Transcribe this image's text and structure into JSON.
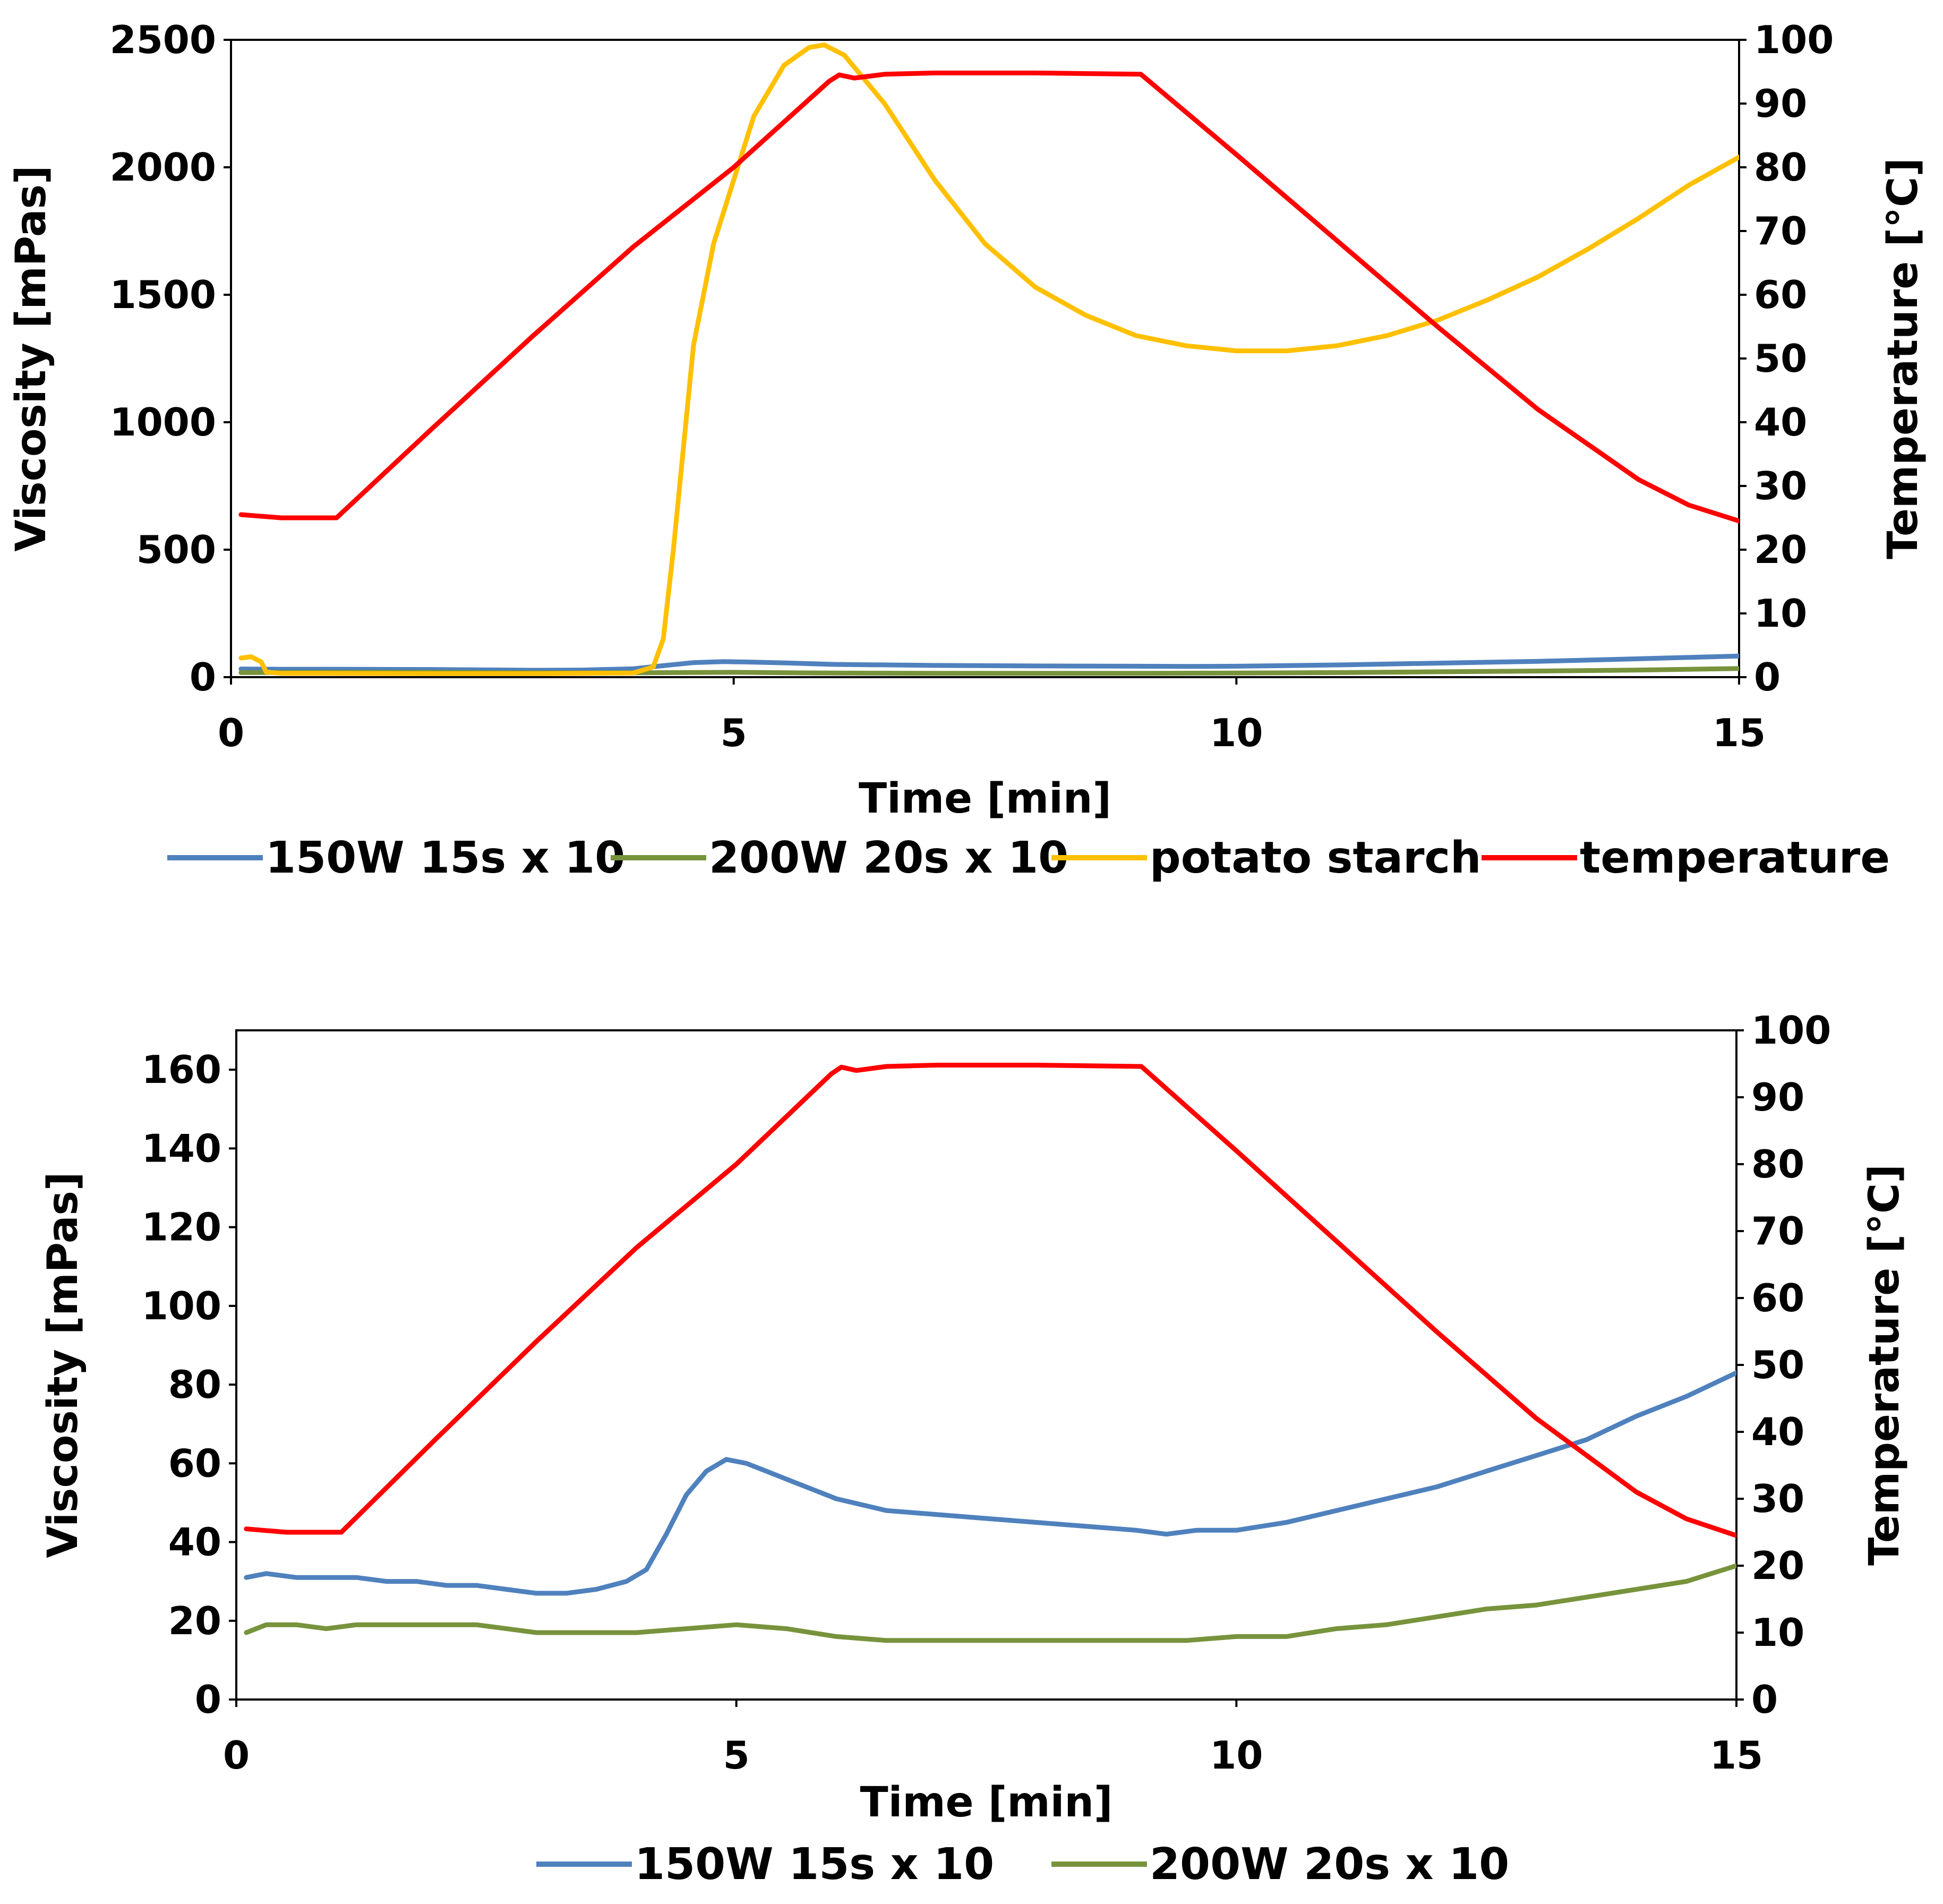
{
  "figure": {
    "panels": 2
  },
  "chart_data": [
    {
      "type": "line",
      "panel": "top",
      "xlabel": "Time [min]",
      "ylabel": "Viscosity [mPas]",
      "y2label": "Temperature [°C]",
      "xlim": [
        0,
        15
      ],
      "ylim": [
        0,
        2500
      ],
      "y2lim": [
        0,
        100
      ],
      "xticks": [
        0,
        5,
        10,
        15
      ],
      "yticks": [
        0,
        500,
        1000,
        1500,
        2000,
        2500
      ],
      "y2ticks": [
        0,
        10,
        20,
        30,
        40,
        50,
        60,
        70,
        80,
        90,
        100
      ],
      "grid": false,
      "legend_position": "bottom",
      "series": [
        {
          "name": "150W 15s x 10",
          "axis": "left",
          "color": "#4f81bd",
          "x": [
            0.1,
            0.5,
            1,
            2,
            3,
            3.5,
            4,
            4.3,
            4.6,
            4.9,
            5.2,
            5.5,
            6,
            7,
            8,
            9,
            9.5,
            10,
            11,
            12,
            13,
            14,
            15
          ],
          "y": [
            32,
            31,
            31,
            30,
            27,
            28,
            33,
            45,
            57,
            61,
            59,
            56,
            50,
            46,
            44,
            43,
            42,
            43,
            48,
            55,
            62,
            72,
            83
          ]
        },
        {
          "name": "200W 20s x 10",
          "axis": "left",
          "color": "#77933c",
          "x": [
            0.1,
            1,
            2,
            3,
            4,
            5,
            6,
            7,
            8,
            9,
            10,
            11,
            12,
            13,
            14,
            15
          ],
          "y": [
            18,
            19,
            19,
            17,
            17,
            19,
            16,
            15,
            15,
            15,
            16,
            18,
            21,
            24,
            28,
            34
          ]
        },
        {
          "name": "potato starch",
          "axis": "left",
          "color": "#ffc000",
          "x": [
            0.1,
            0.2,
            0.3,
            0.35,
            0.5,
            1,
            2,
            3,
            4,
            4.2,
            4.3,
            4.4,
            4.5,
            4.6,
            4.8,
            5,
            5.2,
            5.5,
            5.75,
            5.9,
            6.1,
            6.5,
            7,
            7.5,
            8,
            8.5,
            9,
            9.5,
            10,
            10.5,
            11,
            11.5,
            12,
            12.5,
            13,
            13.5,
            14,
            14.5,
            15
          ],
          "y": [
            75,
            80,
            60,
            20,
            15,
            15,
            14,
            14,
            16,
            40,
            150,
            500,
            900,
            1300,
            1700,
            1950,
            2200,
            2400,
            2470,
            2480,
            2440,
            2250,
            1950,
            1700,
            1530,
            1420,
            1340,
            1300,
            1280,
            1280,
            1300,
            1340,
            1400,
            1480,
            1570,
            1680,
            1800,
            1930,
            2040
          ]
        },
        {
          "name": "temperature",
          "axis": "right",
          "color": "#ff0000",
          "x": [
            0.1,
            0.5,
            1.05,
            2,
            3,
            4,
            5,
            5.95,
            6.05,
            6.2,
            6.5,
            7,
            8,
            9.05,
            10,
            11,
            12,
            13,
            14,
            14.5,
            15
          ],
          "y": [
            25.5,
            25.0,
            25.0,
            39,
            53.5,
            67.5,
            80,
            93.5,
            94.5,
            94.0,
            94.6,
            94.8,
            94.8,
            94.6,
            82,
            68.5,
            55,
            42,
            31,
            27,
            24.5
          ]
        }
      ]
    },
    {
      "type": "line",
      "panel": "bottom",
      "xlabel": "Time [min]",
      "ylabel": "Viscosity [mPas]",
      "y2label": "Temperature [°C]",
      "xlim": [
        0,
        15
      ],
      "ylim": [
        0,
        170
      ],
      "y2lim": [
        0,
        100
      ],
      "xticks": [
        0,
        5,
        10,
        15
      ],
      "yticks": [
        0,
        20,
        40,
        60,
        80,
        100,
        120,
        140,
        160
      ],
      "y2ticks": [
        0,
        10,
        20,
        30,
        40,
        50,
        60,
        70,
        80,
        90,
        100
      ],
      "grid": false,
      "legend_position": "bottom",
      "series": [
        {
          "name": "150W 15s x 10",
          "axis": "left",
          "color": "#4f81bd",
          "x": [
            0.1,
            0.3,
            0.6,
            0.9,
            1.2,
            1.5,
            1.8,
            2.1,
            2.4,
            2.7,
            3.0,
            3.3,
            3.6,
            3.9,
            4.1,
            4.3,
            4.5,
            4.7,
            4.9,
            5.1,
            5.3,
            5.6,
            6.0,
            6.5,
            7.0,
            7.5,
            8.0,
            8.5,
            9.0,
            9.3,
            9.6,
            10.0,
            10.5,
            11.0,
            11.5,
            12.0,
            12.5,
            13.0,
            13.5,
            14.0,
            14.5,
            15.0
          ],
          "y": [
            31,
            32,
            31,
            31,
            31,
            30,
            30,
            29,
            29,
            28,
            27,
            27,
            28,
            30,
            33,
            42,
            52,
            58,
            61,
            60,
            58,
            55,
            51,
            48,
            47,
            46,
            45,
            44,
            43,
            42,
            43,
            43,
            45,
            48,
            51,
            54,
            58,
            62,
            66,
            72,
            77,
            83
          ]
        },
        {
          "name": "200W 20s x 10",
          "axis": "left",
          "color": "#77933c",
          "x": [
            0.1,
            0.3,
            0.6,
            0.9,
            1.2,
            1.5,
            1.8,
            2.1,
            2.4,
            2.7,
            3.0,
            3.5,
            4.0,
            4.5,
            5.0,
            5.5,
            6.0,
            6.5,
            7.0,
            7.5,
            8.0,
            8.5,
            9.0,
            9.5,
            10.0,
            10.5,
            11.0,
            11.5,
            12.0,
            12.5,
            13.0,
            13.5,
            14.0,
            14.5,
            15.0
          ],
          "y": [
            17,
            19,
            19,
            18,
            19,
            19,
            19,
            19,
            19,
            18,
            17,
            17,
            17,
            18,
            19,
            18,
            16,
            15,
            15,
            15,
            15,
            15,
            15,
            15,
            16,
            16,
            18,
            19,
            21,
            23,
            24,
            26,
            28,
            30,
            34
          ]
        },
        {
          "name": "temperature",
          "axis": "right",
          "color": "#ff0000",
          "in_legend": false,
          "x": [
            0.1,
            0.5,
            1.05,
            2,
            3,
            4,
            5,
            5.95,
            6.05,
            6.2,
            6.5,
            7,
            8,
            9.05,
            10,
            11,
            12,
            13,
            14,
            14.5,
            15
          ],
          "y": [
            25.5,
            25.0,
            25.0,
            39,
            53.5,
            67.5,
            80,
            93.5,
            94.5,
            94.0,
            94.6,
            94.8,
            94.8,
            94.6,
            82,
            68.5,
            55,
            42,
            31,
            27,
            24.5
          ]
        }
      ]
    }
  ]
}
